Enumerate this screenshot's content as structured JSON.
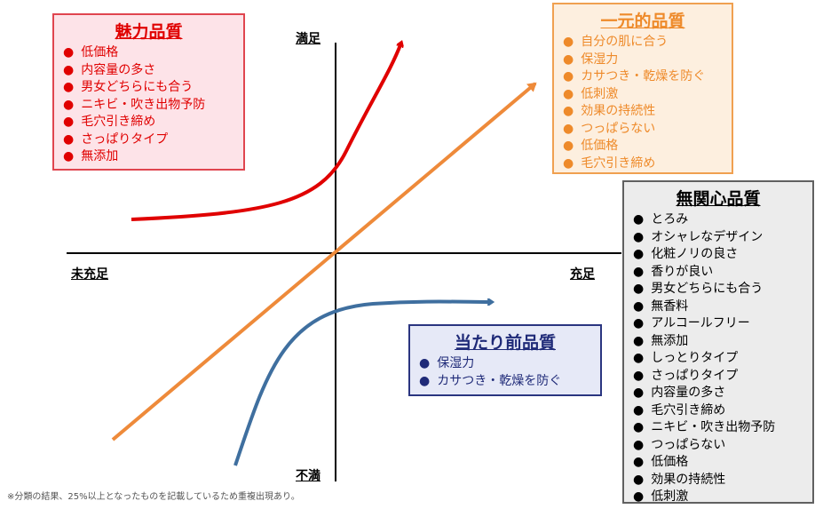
{
  "axes": {
    "top": "満足",
    "bottom": "不満",
    "left": "未充足",
    "right": "充足"
  },
  "attractive": {
    "title": "魅力品質",
    "color": "#e00000",
    "items": [
      "低価格",
      "内容量の多さ",
      "男女どちらにも合う",
      "ニキビ・吹き出物予防",
      "毛穴引き締め",
      "さっぱりタイプ",
      "無添加"
    ]
  },
  "one_dimensional": {
    "title": "一元的品質",
    "color": "#ee8a2a",
    "items": [
      "自分の肌に合う",
      "保湿力",
      "カサつき・乾燥を防ぐ",
      "低刺激",
      "効果の持続性",
      "つっぱらない",
      "低価格",
      "毛穴引き締め"
    ]
  },
  "indifferent": {
    "title": "無関心品質",
    "color": "#000000",
    "items": [
      "とろみ",
      "オシャレなデザイン",
      "化粧ノリの良さ",
      "香りが良い",
      "男女どちらにも合う",
      "無香料",
      "アルコールフリー",
      "無添加",
      "しっとりタイプ",
      "さっぱりタイプ",
      "内容量の多さ",
      "毛穴引き締め",
      "ニキビ・吹き出物予防",
      "つっぱらない",
      "低価格",
      "効果の持続性",
      "低刺激"
    ]
  },
  "must_be": {
    "title": "当たり前品質",
    "color": "#1f2a78",
    "items": [
      "保湿力",
      "カサつき・乾燥を防ぐ"
    ]
  },
  "note": "※分類の結果、25%以上となったものを記載しているため重複出現あり。"
}
